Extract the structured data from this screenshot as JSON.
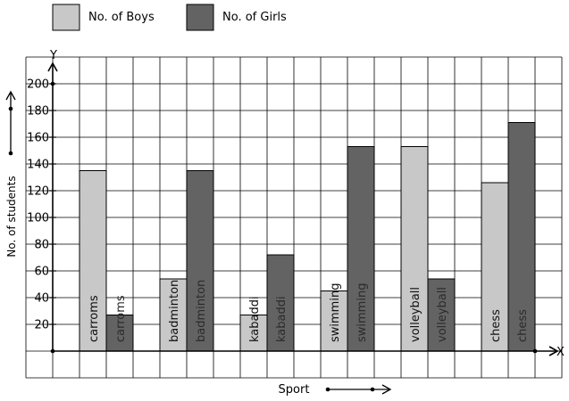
{
  "chart_data": {
    "type": "bar",
    "categories": [
      "carroms",
      "badminton",
      "kabaddi",
      "swimming",
      "volleyball",
      "chess"
    ],
    "series": [
      {
        "name": "No. of Boys",
        "values": [
          135,
          54,
          27,
          45,
          153,
          126
        ],
        "color": "#c8c8c8"
      },
      {
        "name": "No. of Girls",
        "values": [
          27,
          135,
          72,
          153,
          54,
          171
        ],
        "color": "#636363"
      }
    ],
    "ylim": [
      0,
      220
    ],
    "yticks": [
      "20",
      "40",
      "60",
      "80",
      "100",
      "120",
      "140",
      "160",
      "180",
      "200"
    ],
    "xlabel": "Sport",
    "ylabel": "No. of students",
    "x_axis_letter": "X",
    "y_axis_letter": "Y",
    "grid": true,
    "legend_position": "top-left"
  }
}
